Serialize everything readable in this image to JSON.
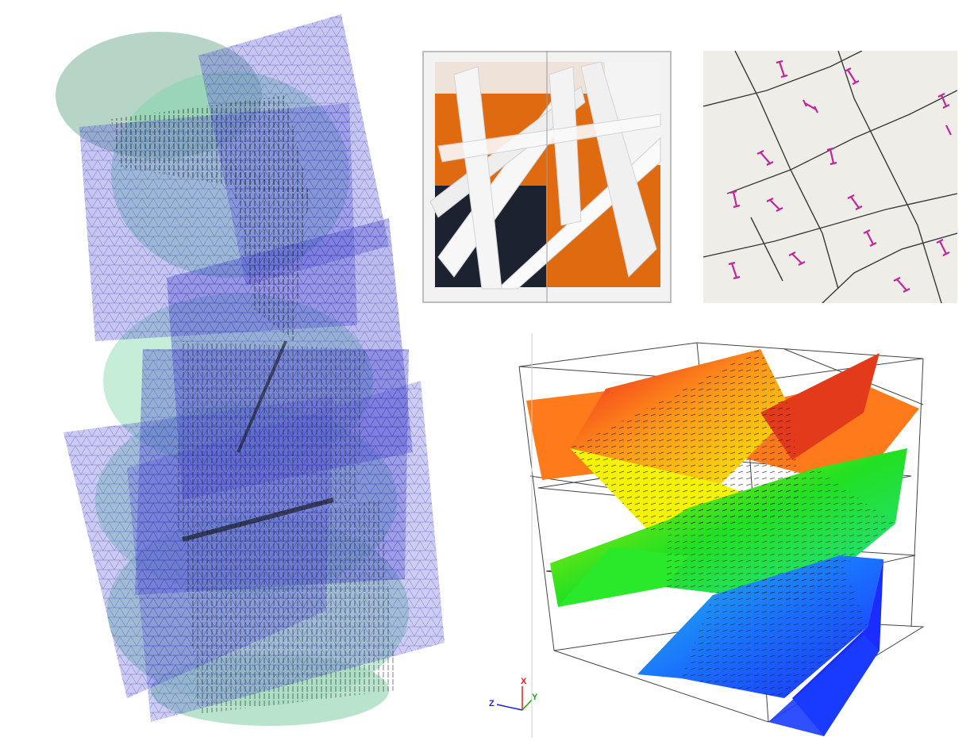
{
  "figure": {
    "panels": [
      {
        "id": "left",
        "description_name": "blue-mesh-planes-with-green-discs"
      },
      {
        "id": "box",
        "description_name": "white-partition-box-photo"
      },
      {
        "id": "tiles",
        "description_name": "cracked-tile-photo"
      },
      {
        "id": "cube",
        "description_name": "colored-layers-cube-render"
      }
    ]
  },
  "axes": {
    "z_label": "Z",
    "x_label": "X",
    "y_label": "Y"
  },
  "colors": {
    "mesh_blue": "#5b5bd6",
    "disc_green": "#7fd6a8",
    "layer_red": "#ee1c1c",
    "layer_orange": "#ff7a1a",
    "layer_yellow": "#f4f400",
    "layer_green": "#22e022",
    "layer_blue": "#1a3cff",
    "tile_mark": "#c2289e",
    "axis_x": "#e01e1e",
    "axis_y": "#1ea01e",
    "axis_z": "#1e1ee0"
  }
}
